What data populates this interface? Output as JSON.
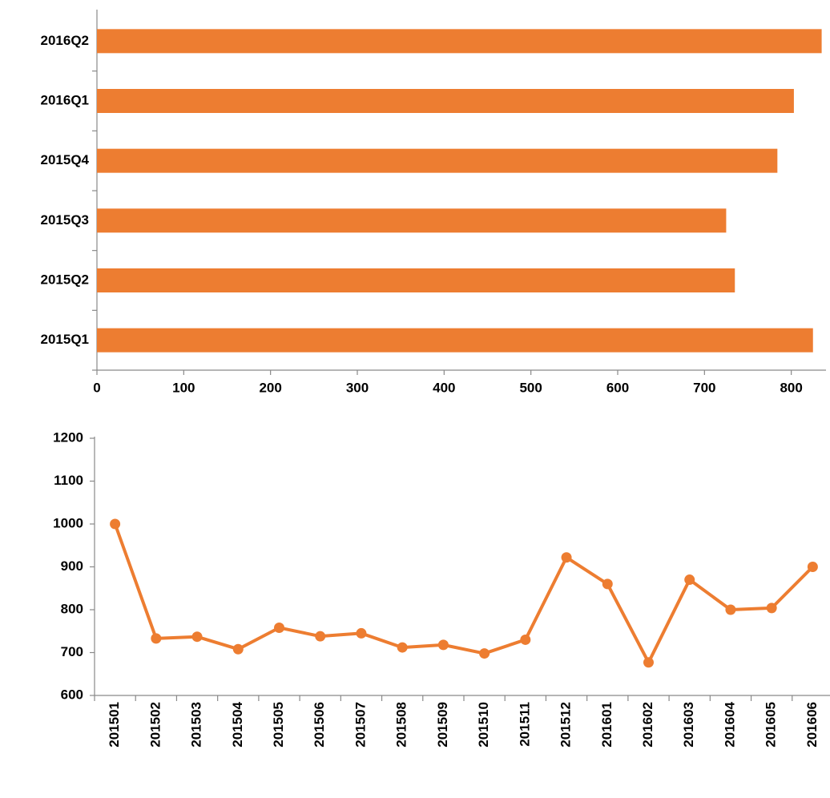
{
  "chart_data": [
    {
      "type": "bar",
      "orientation": "horizontal",
      "categories": [
        "2015Q1",
        "2015Q2",
        "2015Q3",
        "2015Q4",
        "2016Q1",
        "2016Q2"
      ],
      "values": [
        825,
        735,
        725,
        784,
        803,
        835
      ],
      "color": "#ed7d31",
      "xlim": [
        0,
        840
      ],
      "xticks": [
        0,
        100,
        200,
        300,
        400,
        500,
        600,
        700,
        800
      ],
      "grid": false
    },
    {
      "type": "line",
      "categories": [
        "201501",
        "201502",
        "201503",
        "201504",
        "201505",
        "201506",
        "201507",
        "201508",
        "201509",
        "201510",
        "201511",
        "201512",
        "201601",
        "201602",
        "201603",
        "201604",
        "201605",
        "201606"
      ],
      "values": [
        1000,
        733,
        737,
        708,
        758,
        738,
        745,
        712,
        718,
        698,
        730,
        922,
        860,
        677,
        870,
        800,
        804,
        900
      ],
      "color": "#ed7d31",
      "ylim": [
        600,
        1200
      ],
      "yticks": [
        600,
        700,
        800,
        900,
        1000,
        1100,
        1200
      ],
      "grid": false,
      "markers": true
    }
  ]
}
